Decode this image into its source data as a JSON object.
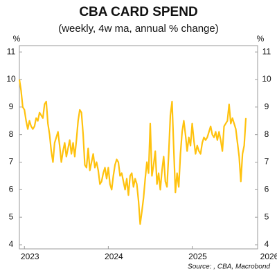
{
  "chart_data": {
    "type": "line",
    "title": "CBA CARD SPEND",
    "subtitle": "(weekly, 4w ma, annual % change)",
    "y_unit": "%",
    "y2_unit": "%",
    "source": "Source: , CBA, Macrobond",
    "xlim": [
      2022.94,
      2025.78
    ],
    "xticks": [
      2023,
      2024,
      2025,
      2026
    ],
    "ylim": [
      3.85,
      11.23
    ],
    "yticks": [
      4,
      5,
      6,
      7,
      8,
      9,
      10,
      11
    ],
    "y2ticks": [
      4,
      5,
      6,
      7,
      8,
      9,
      10,
      11
    ],
    "series": [
      {
        "color": "#ffc20e",
        "x": [
          2022.94,
          2022.96,
          2022.98,
          2023.0,
          2023.02,
          2023.04,
          2023.06,
          2023.08,
          2023.1,
          2023.12,
          2023.14,
          2023.16,
          2023.18,
          2023.2,
          2023.22,
          2023.24,
          2023.26,
          2023.28,
          2023.3,
          2023.32,
          2023.34,
          2023.36,
          2023.38,
          2023.4,
          2023.42,
          2023.44,
          2023.46,
          2023.48,
          2023.5,
          2023.52,
          2023.54,
          2023.56,
          2023.58,
          2023.6,
          2023.62,
          2023.64,
          2023.66,
          2023.68,
          2023.7,
          2023.72,
          2023.74,
          2023.76,
          2023.78,
          2023.8,
          2023.82,
          2023.84,
          2023.86,
          2023.88,
          2023.9,
          2023.92,
          2023.94,
          2023.96,
          2023.98,
          2024.0,
          2024.02,
          2024.04,
          2024.06,
          2024.08,
          2024.1,
          2024.12,
          2024.14,
          2024.16,
          2024.18,
          2024.2,
          2024.22,
          2024.24,
          2024.26,
          2024.28,
          2024.3,
          2024.32,
          2024.34,
          2024.36,
          2024.38,
          2024.4,
          2024.42,
          2024.44,
          2024.46,
          2024.48,
          2024.5,
          2024.52,
          2024.54,
          2024.56,
          2024.58,
          2024.6,
          2024.62,
          2024.64,
          2024.66,
          2024.68,
          2024.7,
          2024.72,
          2024.74,
          2024.76,
          2024.78,
          2024.8,
          2024.82,
          2024.84,
          2024.86,
          2024.88,
          2024.9,
          2024.92,
          2024.94,
          2024.96,
          2024.98,
          2025.0,
          2025.02,
          2025.04,
          2025.06,
          2025.08,
          2025.1,
          2025.12,
          2025.14,
          2025.16,
          2025.18,
          2025.2,
          2025.22,
          2025.24,
          2025.26,
          2025.28,
          2025.3,
          2025.32,
          2025.34,
          2025.36,
          2025.38,
          2025.4,
          2025.42,
          2025.44,
          2025.46,
          2025.48,
          2025.5,
          2025.52,
          2025.54,
          2025.56,
          2025.58,
          2025.6,
          2025.62,
          2025.64
        ],
        "values": [
          10.0,
          9.6,
          9.0,
          8.9,
          8.5,
          8.2,
          8.5,
          8.3,
          8.2,
          8.3,
          8.6,
          8.5,
          8.8,
          8.7,
          8.6,
          9.1,
          9.2,
          8.4,
          8.0,
          7.4,
          7.0,
          7.7,
          7.9,
          8.1,
          7.6,
          7.0,
          7.4,
          7.7,
          7.2,
          7.5,
          7.8,
          7.3,
          7.7,
          7.2,
          7.8,
          8.5,
          8.9,
          8.8,
          8.0,
          6.9,
          6.8,
          7.5,
          6.7,
          7.0,
          7.3,
          6.8,
          7.0,
          6.7,
          6.2,
          6.3,
          6.6,
          6.8,
          6.4,
          6.8,
          6.2,
          6.0,
          6.5,
          6.9,
          7.1,
          7.0,
          6.5,
          6.6,
          6.3,
          6.0,
          6.4,
          5.8,
          6.5,
          6.6,
          6.1,
          6.4,
          6.2,
          5.6,
          4.75,
          5.2,
          5.7,
          6.4,
          7.0,
          6.6,
          8.4,
          6.5,
          6.9,
          7.4,
          6.2,
          6.6,
          6.0,
          6.7,
          7.2,
          6.3,
          6.1,
          7.3,
          8.7,
          9.2,
          7.5,
          5.9,
          6.6,
          6.1,
          7.3,
          8.1,
          8.5,
          8.0,
          7.4,
          7.9,
          7.6,
          8.4,
          7.8,
          7.3,
          7.6,
          7.4,
          7.3,
          7.7,
          7.9,
          7.8,
          7.9,
          8.1,
          8.3,
          8.0,
          7.9,
          8.1,
          7.8,
          8.1,
          7.8,
          7.4,
          8.3,
          8.4,
          8.5,
          9.1,
          8.4,
          8.6,
          8.4,
          8.2,
          7.7,
          7.2,
          6.3,
          7.3,
          7.6,
          8.6
        ]
      }
    ]
  }
}
